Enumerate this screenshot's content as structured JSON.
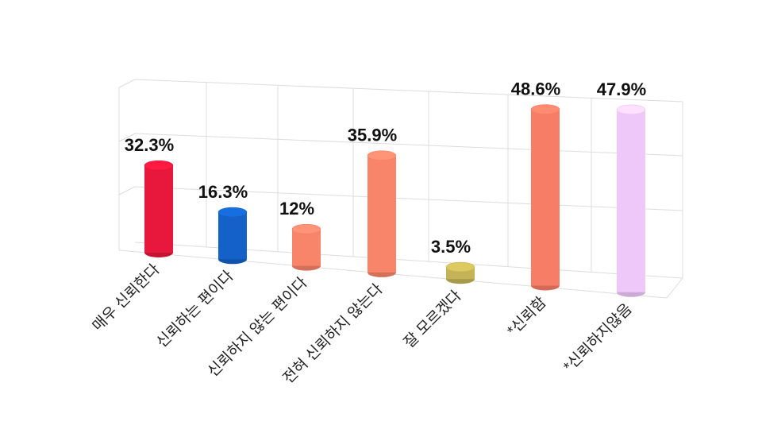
{
  "chart_data": {
    "type": "bar",
    "style": "3d-cylinder",
    "categories": [
      "매우 신뢰한다",
      "신뢰하는 편이다",
      "신뢰하지 않는 편이다",
      "전혀 신뢰하지 않는다",
      "잘 모르겠다",
      "*신뢰함",
      "*신뢰하지않음"
    ],
    "values": [
      32.3,
      16.3,
      12,
      35.9,
      3.5,
      48.6,
      47.9
    ],
    "value_labels": [
      "32.3%",
      "16.3%",
      "12%",
      "35.9%",
      "3.5%",
      "48.6%",
      "47.9%"
    ],
    "colors": [
      "#e8173c",
      "#1462c8",
      "#f8846a",
      "#f8846a",
      "#c4b457",
      "#f87d66",
      "#efc8fa"
    ],
    "ylim": [
      0,
      60
    ]
  }
}
